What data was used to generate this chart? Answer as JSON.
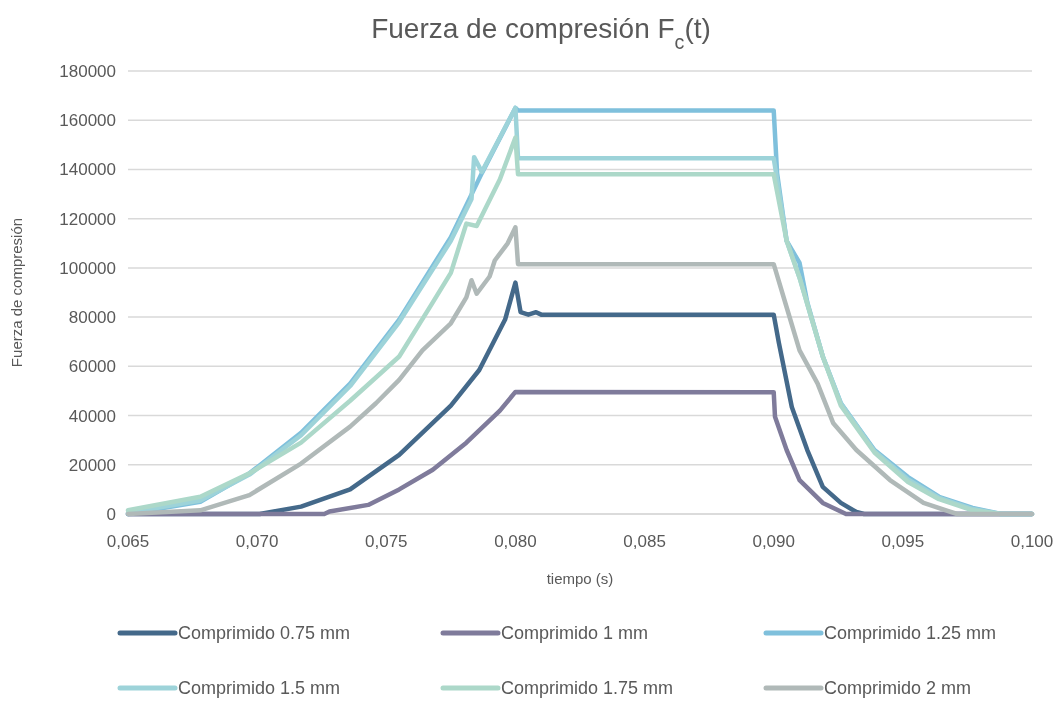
{
  "chart_data": {
    "type": "line",
    "title": "Fuerza de compresión F$_{c}$(t)",
    "xlabel": "tiempo (s)",
    "ylabel": "Fuerza de compresión",
    "xlim": [
      0.065,
      0.1
    ],
    "ylim": [
      0,
      180000
    ],
    "xticks": [
      {
        "value": 0.065,
        "label": "0,065"
      },
      {
        "value": 0.07,
        "label": "0,070"
      },
      {
        "value": 0.075,
        "label": "0,075"
      },
      {
        "value": 0.08,
        "label": "0,080"
      },
      {
        "value": 0.085,
        "label": "0,085"
      },
      {
        "value": 0.09,
        "label": "0,090"
      },
      {
        "value": 0.095,
        "label": "0,095"
      },
      {
        "value": 0.1,
        "label": "0,100"
      }
    ],
    "yticks": [
      0,
      20000,
      40000,
      60000,
      80000,
      100000,
      120000,
      140000,
      160000,
      180000
    ],
    "grid": "y",
    "legend": "bottom",
    "line_style": "solid",
    "series": [
      {
        "name": "Comprimido 0.75 mm",
        "color": "#44698a",
        "x": [
          0.065,
          0.0701,
          0.0717,
          0.0736,
          0.0755,
          0.0775,
          0.0786,
          0.0796,
          0.08,
          0.0802,
          0.0805,
          0.0808,
          0.081,
          0.09,
          0.0902,
          0.0907,
          0.0913,
          0.0919,
          0.0926,
          0.0932,
          0.0935,
          0.1
        ],
        "values": [
          0,
          0,
          3000,
          10000,
          24000,
          44000,
          58500,
          79000,
          94000,
          82000,
          81000,
          82000,
          81000,
          81000,
          69500,
          43500,
          26000,
          11000,
          4500,
          800,
          0,
          0
        ]
      },
      {
        "name": "Comprimido 1 mm",
        "color": "#7f7b9b",
        "x": [
          0.065,
          0.0726,
          0.0728,
          0.0743,
          0.0755,
          0.0768,
          0.0781,
          0.0794,
          0.08,
          0.09,
          0.09005,
          0.0905,
          0.091,
          0.0919,
          0.0928,
          0.1
        ],
        "values": [
          0,
          0,
          1000,
          3700,
          10000,
          18000,
          29000,
          42000,
          49600,
          49500,
          39500,
          26000,
          13800,
          4500,
          0,
          0
        ]
      },
      {
        "name": "Comprimido 1.25 mm",
        "color": "#7fc0dc",
        "x": [
          0.065,
          0.0678,
          0.0697,
          0.0717,
          0.0736,
          0.0755,
          0.0775,
          0.0787,
          0.08,
          0.0801,
          0.09,
          0.09013,
          0.0905,
          0.091,
          0.0913,
          0.0919,
          0.0926,
          0.0939,
          0.0952,
          0.0964,
          0.0977,
          0.0988,
          0.1
        ],
        "values": [
          0,
          5000,
          16500,
          33000,
          53000,
          79000,
          112500,
          138500,
          165000,
          164000,
          164000,
          138500,
          111000,
          102000,
          86000,
          64000,
          45000,
          26000,
          15000,
          7000,
          2500,
          0,
          0
        ]
      },
      {
        "name": "Comprimido 1.5 mm",
        "color": "#9dd3d9",
        "x": [
          0.065,
          0.0678,
          0.0697,
          0.0717,
          0.0736,
          0.0755,
          0.0775,
          0.0783,
          0.0784,
          0.0787,
          0.08,
          0.0801,
          0.09,
          0.0901,
          0.0905,
          0.091,
          0.0919,
          0.0926,
          0.0939,
          0.0952,
          0.0964,
          0.0977,
          0.0988,
          0.1
        ],
        "values": [
          500,
          5500,
          16000,
          32000,
          52000,
          78000,
          111000,
          128000,
          145000,
          139000,
          165000,
          144500,
          144500,
          138000,
          111000,
          96000,
          64000,
          45000,
          25500,
          14000,
          6500,
          2000,
          0,
          0
        ]
      },
      {
        "name": "Comprimido 1.75 mm",
        "color": "#acd8c9",
        "x": [
          0.065,
          0.0678,
          0.0697,
          0.0717,
          0.0736,
          0.0755,
          0.0768,
          0.0775,
          0.0781,
          0.0785,
          0.0794,
          0.08,
          0.0801,
          0.09,
          0.0905,
          0.091,
          0.0919,
          0.0926,
          0.0939,
          0.0952,
          0.0964,
          0.0977,
          0.0988,
          0.1
        ],
        "values": [
          1500,
          7000,
          16500,
          29000,
          46000,
          64000,
          86000,
          98000,
          118000,
          117000,
          136000,
          153000,
          138000,
          138000,
          111000,
          96000,
          64000,
          44000,
          25000,
          13000,
          6000,
          1500,
          0,
          0
        ]
      },
      {
        "name": "Comprimido 2 mm",
        "color": "#b0b9b8",
        "x": [
          0.065,
          0.0678,
          0.0697,
          0.0717,
          0.0736,
          0.0746,
          0.0755,
          0.0764,
          0.0775,
          0.0781,
          0.0783,
          0.0785,
          0.079,
          0.0792,
          0.0797,
          0.08,
          0.0801,
          0.09,
          0.0905,
          0.091,
          0.0917,
          0.0923,
          0.0932,
          0.0945,
          0.0958,
          0.0971,
          0.1
        ],
        "values": [
          0,
          1500,
          7700,
          20500,
          35500,
          45000,
          54500,
          66500,
          77500,
          88000,
          95000,
          89500,
          96500,
          103000,
          110000,
          116500,
          101500,
          101500,
          84000,
          66500,
          53000,
          37000,
          26000,
          13800,
          4500,
          0,
          0
        ]
      }
    ]
  }
}
